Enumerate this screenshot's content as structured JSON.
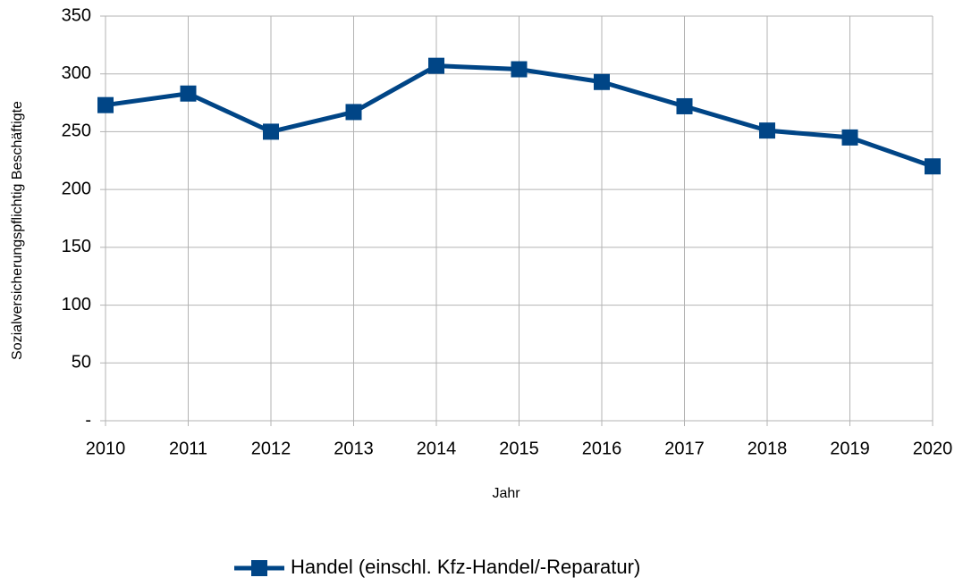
{
  "chart_data": {
    "type": "line",
    "x_label": "Jahr",
    "y_label": "Sozialversicherungspflichtig Beschäftigte",
    "categories": [
      "2010",
      "2011",
      "2012",
      "2013",
      "2014",
      "2015",
      "2016",
      "2017",
      "2018",
      "2019",
      "2020"
    ],
    "series": [
      {
        "name": "Handel (einschl. Kfz-Handel/-Reparatur)",
        "color": "#004586",
        "values": [
          273,
          283,
          250,
          267,
          307,
          304,
          293,
          272,
          251,
          245,
          220
        ]
      }
    ],
    "ylim": [
      0,
      350
    ],
    "yticks": [
      {
        "value": 0,
        "label": "-"
      },
      50,
      100,
      150,
      200,
      250,
      300,
      350
    ],
    "grid": true,
    "legend": "bottom"
  }
}
